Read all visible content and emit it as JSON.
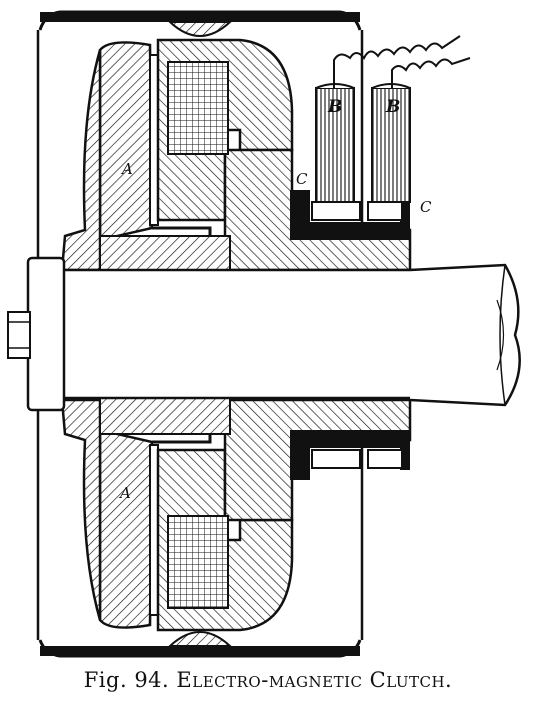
{
  "figure": {
    "labels": {
      "armature_top": "A",
      "armature_bottom": "A",
      "brush_1": "B",
      "brush_2": "B",
      "collector_left": "C",
      "collector_right": "C"
    },
    "colors": {
      "ink": "#111111",
      "hatch": "#111111",
      "background": "#ffffff"
    },
    "caption": {
      "fig_number": "Fig. 94.",
      "title": "Electro-magnetic Clutch."
    }
  }
}
